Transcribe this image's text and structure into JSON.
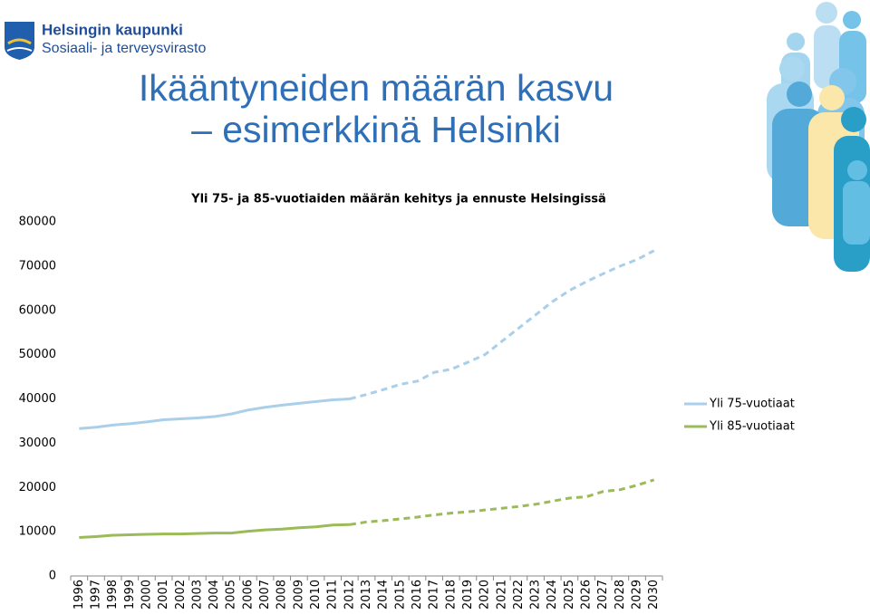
{
  "logo": {
    "name": "Helsingin kaupunki",
    "department": "Sosiaali- ja terveysvirasto"
  },
  "slide_title": [
    "Ikääntyneiden määrän kasvu",
    "– esimerkkinä Helsinki"
  ],
  "chart_data": {
    "type": "line",
    "title": "Yli 75- ja 85-vuotiaiden määrän kehitys ja ennuste Helsingissä",
    "categories": [
      "1996",
      "1997",
      "1998",
      "1999",
      "2000",
      "2001",
      "2002",
      "2003",
      "2004",
      "2005",
      "2006",
      "2007",
      "2008",
      "2009",
      "2010",
      "2011",
      "2012",
      "2013",
      "2014",
      "2015",
      "2016",
      "2017",
      "2018",
      "2019",
      "2020",
      "2021",
      "2022",
      "2023",
      "2024",
      "2025",
      "2026",
      "2027",
      "2028",
      "2029",
      "2030"
    ],
    "forecast_start": "2012",
    "series": [
      {
        "name": "Yli 75-vuotiaat",
        "color": "#a9cfe9",
        "values": [
          33300,
          33600,
          34100,
          34400,
          34800,
          35300,
          35500,
          35700,
          36000,
          36600,
          37500,
          38100,
          38600,
          39000,
          39400,
          39800,
          40000,
          41000,
          42100,
          43300,
          44000,
          46000,
          46700,
          48300,
          50000,
          53000,
          56000,
          59000,
          62000,
          64500,
          66500,
          68300,
          70000,
          71500,
          73500
        ]
      },
      {
        "name": "Yli 85-vuotiaat",
        "color": "#9bbb59",
        "values": [
          8700,
          8900,
          9200,
          9300,
          9400,
          9500,
          9500,
          9600,
          9700,
          9700,
          10100,
          10400,
          10600,
          10900,
          11100,
          11500,
          11600,
          12200,
          12500,
          12900,
          13300,
          13800,
          14200,
          14500,
          14900,
          15300,
          15700,
          16200,
          16900,
          17600,
          17900,
          19100,
          19500,
          20500,
          21700
        ]
      }
    ],
    "ylim": [
      0,
      80000
    ],
    "yticks": [
      0,
      10000,
      20000,
      30000,
      40000,
      50000,
      60000,
      70000,
      80000
    ],
    "grid": false,
    "legend": "right"
  }
}
